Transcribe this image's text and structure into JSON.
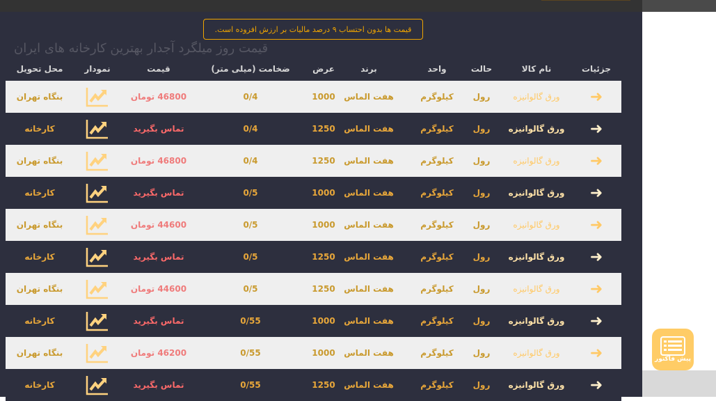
{
  "notice": "قیمت ها بدون احتساب ۹ درصد مالیات بر ارزش افزوده است.",
  "headers": {
    "details": "جزئیات",
    "name": "نام کالا",
    "state": "حالت",
    "unit": "واحد",
    "brand": "برند",
    "width": "عرض",
    "thickness": "ضخامت (میلی متر)",
    "price": "قیمت",
    "chart": "نمودار",
    "delivery": "محل تحویل"
  },
  "rows": [
    {
      "name": "ورق گالوانیزه",
      "state": "رول",
      "unit": "کیلوگرم",
      "brand": "هفت الماس",
      "width": "1000",
      "thickness": "0/4",
      "price": "46800 تومان",
      "delivery": "بنگاه تهران"
    },
    {
      "name": "ورق گالوانیزه",
      "state": "رول",
      "unit": "کیلوگرم",
      "brand": "هفت الماس",
      "width": "1250",
      "thickness": "0/4",
      "price": "تماس بگیرید",
      "delivery": "کارخانه"
    },
    {
      "name": "ورق گالوانیزه",
      "state": "رول",
      "unit": "کیلوگرم",
      "brand": "هفت الماس",
      "width": "1250",
      "thickness": "0/4",
      "price": "46800 تومان",
      "delivery": "بنگاه تهران"
    },
    {
      "name": "ورق گالوانیزه",
      "state": "رول",
      "unit": "کیلوگرم",
      "brand": "هفت الماس",
      "width": "1000",
      "thickness": "0/5",
      "price": "تماس بگیرید",
      "delivery": "کارخانه"
    },
    {
      "name": "ورق گالوانیزه",
      "state": "رول",
      "unit": "کیلوگرم",
      "brand": "هفت الماس",
      "width": "1000",
      "thickness": "0/5",
      "price": "44600 تومان",
      "delivery": "بنگاه تهران"
    },
    {
      "name": "ورق گالوانیزه",
      "state": "رول",
      "unit": "کیلوگرم",
      "brand": "هفت الماس",
      "width": "1250",
      "thickness": "0/5",
      "price": "تماس بگیرید",
      "delivery": "کارخانه"
    },
    {
      "name": "ورق گالوانیزه",
      "state": "رول",
      "unit": "کیلوگرم",
      "brand": "هفت الماس",
      "width": "1250",
      "thickness": "0/5",
      "price": "44600 تومان",
      "delivery": "بنگاه تهران"
    },
    {
      "name": "ورق گالوانیزه",
      "state": "رول",
      "unit": "کیلوگرم",
      "brand": "هفت الماس",
      "width": "1000",
      "thickness": "0/55",
      "price": "تماس بگیرید",
      "delivery": "کارخانه"
    },
    {
      "name": "ورق گالوانیزه",
      "state": "رول",
      "unit": "کیلوگرم",
      "brand": "هفت الماس",
      "width": "1000",
      "thickness": "0/55",
      "price": "46200 تومان",
      "delivery": "بنگاه تهران"
    },
    {
      "name": "ورق گالوانیزه",
      "state": "رول",
      "unit": "کیلوگرم",
      "brand": "هفت الماس",
      "width": "1250",
      "thickness": "0/55",
      "price": "تماس بگیرید",
      "delivery": "کارخانه"
    }
  ],
  "watermark": "قیمت روز میلگرد آجدار بهترین کارخانه های ایران",
  "invoice_button": "پیش فاکتور",
  "colors": {
    "background": "#2d2f3e",
    "accent": "#ffc966",
    "price": "#ef7b7b",
    "light_row": "#efefef"
  }
}
